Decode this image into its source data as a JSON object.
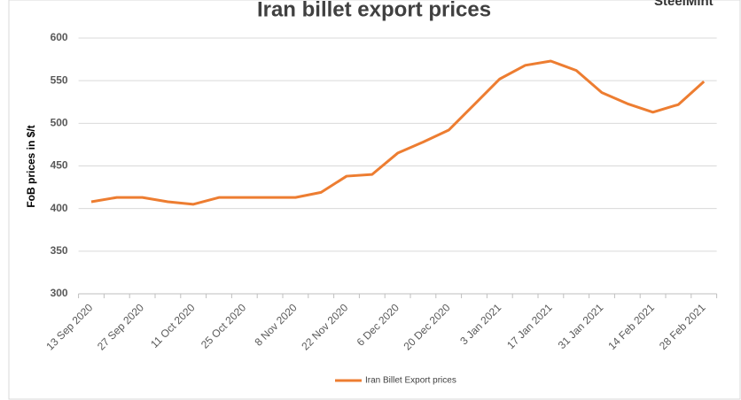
{
  "chart_data": {
    "type": "line",
    "title": "Iran billet export prices",
    "brand": "SteelMint",
    "y_label": "FoB prices in $/t",
    "categories": [
      "13 Sep 2020",
      null,
      "27 Sep 2020",
      null,
      "11 Oct 2020",
      null,
      "25 Oct 2020",
      null,
      "8 Nov 2020",
      null,
      "22 Nov 2020",
      null,
      "6 Dec 2020",
      null,
      "20 Dec 2020",
      null,
      "3 Jan 2021",
      null,
      "17 Jan 2021",
      null,
      "31 Jan 2021",
      null,
      "14 Feb 2021",
      null,
      "28 Feb 2021"
    ],
    "series": [
      {
        "name": "Iran Billet Export prices",
        "color": "#ed7d31",
        "values": [
          408,
          413,
          413,
          408,
          405,
          413,
          413,
          413,
          413,
          419,
          438,
          440,
          465,
          478,
          492,
          522,
          552,
          568,
          573,
          562,
          536,
          523,
          513,
          522,
          549
        ]
      }
    ],
    "ylim": [
      300,
      600
    ],
    "yticks": [
      300,
      350,
      400,
      450,
      500,
      550,
      600
    ],
    "grid": true,
    "legend": "bottom"
  }
}
